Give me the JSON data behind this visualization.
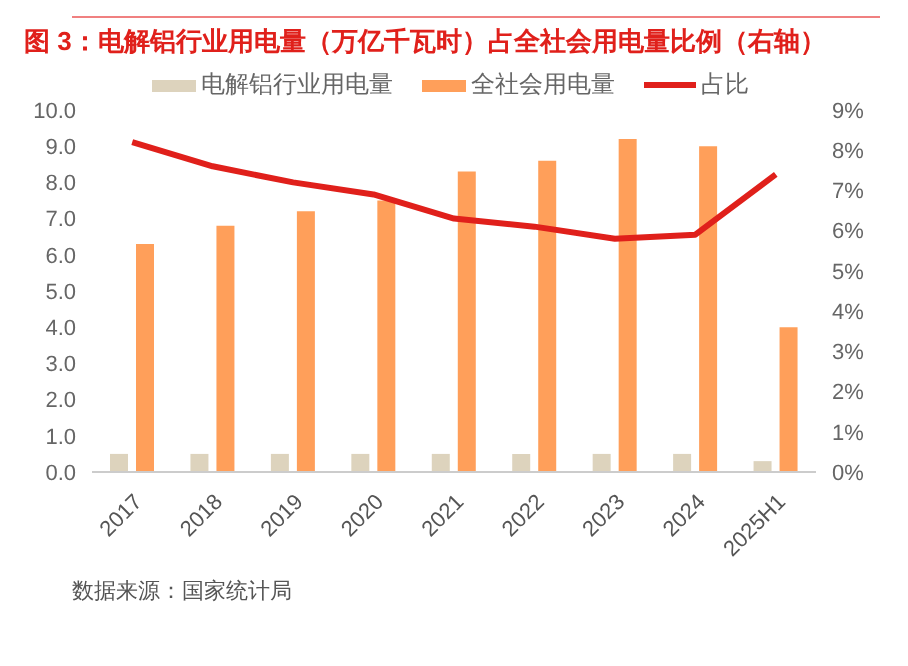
{
  "chart_data": {
    "type": "bar",
    "title": "图 3：电解铝行业用电量（万亿千瓦时）占全社会用电量比例（右轴）",
    "categories": [
      "2017",
      "2018",
      "2019",
      "2020",
      "2021",
      "2022",
      "2023",
      "2024",
      "2025H1"
    ],
    "series": [
      {
        "name": "电解铝行业用电量",
        "color": "#ddd3bd",
        "values": [
          0.5,
          0.5,
          0.5,
          0.5,
          0.5,
          0.5,
          0.5,
          0.5,
          0.3
        ]
      },
      {
        "name": "全社会用电量",
        "color": "#ff9f5a",
        "values": [
          6.3,
          6.8,
          7.2,
          7.5,
          8.3,
          8.6,
          9.2,
          9.0,
          4.0
        ]
      },
      {
        "name": "占比",
        "type": "line",
        "axis": "y2",
        "color": "#e0201b",
        "values": [
          8.2,
          7.6,
          7.2,
          6.9,
          6.3,
          6.1,
          5.8,
          5.9,
          7.4
        ]
      }
    ],
    "ylim": [
      0,
      10
    ],
    "yticks": [
      {
        "value": 0,
        "label": "0.0"
      },
      {
        "value": 1,
        "label": "1.0"
      },
      {
        "value": 2,
        "label": "2.0"
      },
      {
        "value": 3,
        "label": "3.0"
      },
      {
        "value": 4,
        "label": "4.0"
      },
      {
        "value": 5,
        "label": "5.0"
      },
      {
        "value": 6,
        "label": "6.0"
      },
      {
        "value": 7,
        "label": "7.0"
      },
      {
        "value": 8,
        "label": "8.0"
      },
      {
        "value": 9,
        "label": "9.0"
      },
      {
        "value": 10,
        "label": "10.0"
      }
    ],
    "y2lim": [
      0,
      9
    ],
    "y2ticks": [
      {
        "value": 0,
        "label": "0%"
      },
      {
        "value": 1,
        "label": "1%"
      },
      {
        "value": 2,
        "label": "2%"
      },
      {
        "value": 3,
        "label": "3%"
      },
      {
        "value": 4,
        "label": "4%"
      },
      {
        "value": 5,
        "label": "5%"
      },
      {
        "value": 6,
        "label": "6%"
      },
      {
        "value": 7,
        "label": "7%"
      },
      {
        "value": 8,
        "label": "8%"
      },
      {
        "value": 9,
        "label": "9%"
      }
    ],
    "legend": "top",
    "grid": false,
    "marker": "none",
    "annotations": [
      "数据来源：国家统计局"
    ]
  }
}
